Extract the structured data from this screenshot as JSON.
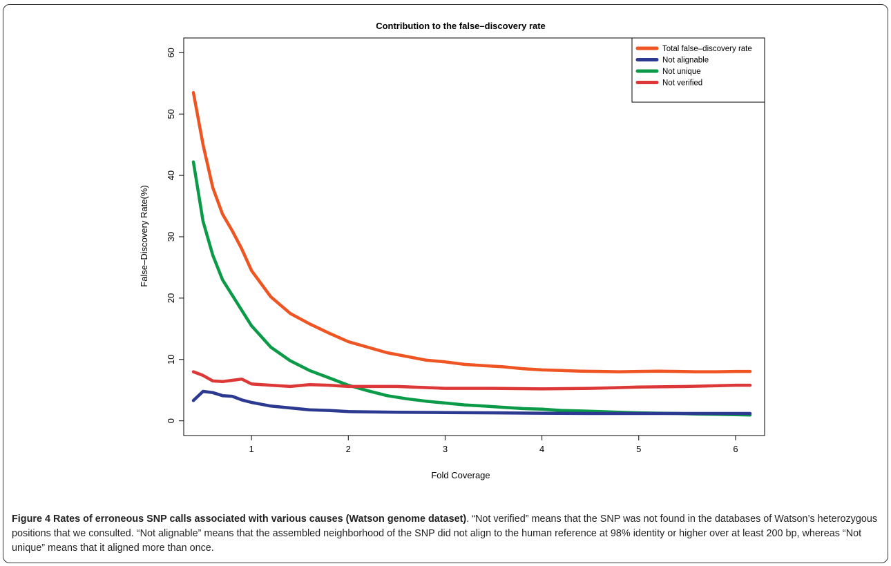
{
  "chart_data": {
    "type": "line",
    "title": "Contribution to the false–discovery rate",
    "xlabel": "Fold Coverage",
    "ylabel": "False–Discovery Rate(%)",
    "xlim": [
      0.3,
      6.3
    ],
    "ylim": [
      -2.4,
      62.4
    ],
    "xticks": [
      "1",
      "2",
      "3",
      "4",
      "5",
      "6"
    ],
    "xtick_values": [
      1,
      2,
      3,
      4,
      5,
      6
    ],
    "yticks": [
      "0",
      "10",
      "20",
      "30",
      "40",
      "50",
      "60"
    ],
    "ytick_values": [
      0,
      10,
      20,
      30,
      40,
      50,
      60
    ],
    "grid": false,
    "legend_position": "top-right",
    "series": [
      {
        "name": "Total false–discovery rate",
        "color": "#EE5522",
        "x": [
          0.4,
          0.5,
          0.6,
          0.7,
          0.8,
          0.9,
          1.0,
          1.2,
          1.4,
          1.6,
          1.8,
          2.0,
          2.2,
          2.4,
          2.6,
          2.8,
          3.0,
          3.2,
          3.4,
          3.6,
          3.8,
          4.0,
          4.2,
          4.4,
          4.6,
          4.8,
          5.0,
          5.2,
          5.4,
          5.6,
          5.8,
          6.0,
          6.15
        ],
        "y": [
          53.5,
          45.0,
          38.0,
          33.7,
          31.0,
          28.0,
          24.5,
          20.2,
          17.5,
          15.8,
          14.3,
          12.9,
          12.0,
          11.1,
          10.5,
          9.9,
          9.6,
          9.2,
          9.0,
          8.8,
          8.5,
          8.3,
          8.2,
          8.1,
          8.05,
          8.0,
          8.05,
          8.1,
          8.05,
          8.0,
          8.0,
          8.05,
          8.05
        ]
      },
      {
        "name": "Not alignable",
        "color": "#2B3990",
        "x": [
          0.4,
          0.5,
          0.6,
          0.7,
          0.8,
          0.9,
          1.0,
          1.2,
          1.4,
          1.6,
          1.8,
          2.0,
          2.5,
          3.0,
          3.5,
          4.0,
          4.5,
          5.0,
          5.5,
          6.0,
          6.15
        ],
        "y": [
          3.3,
          4.8,
          4.6,
          4.1,
          4.0,
          3.4,
          3.0,
          2.4,
          2.1,
          1.8,
          1.7,
          1.5,
          1.4,
          1.35,
          1.3,
          1.25,
          1.2,
          1.2,
          1.2,
          1.2,
          1.2
        ]
      },
      {
        "name": "Not unique",
        "color": "#0A9A48",
        "x": [
          0.4,
          0.5,
          0.6,
          0.7,
          0.8,
          0.9,
          1.0,
          1.2,
          1.4,
          1.6,
          1.8,
          2.0,
          2.2,
          2.4,
          2.6,
          2.8,
          3.0,
          3.2,
          3.4,
          3.6,
          3.8,
          4.0,
          4.2,
          4.4,
          4.6,
          4.8,
          5.0,
          5.2,
          5.4,
          5.6,
          5.8,
          6.0,
          6.15
        ],
        "y": [
          42.2,
          32.5,
          27.0,
          23.0,
          20.5,
          18.0,
          15.5,
          12.0,
          9.8,
          8.2,
          7.0,
          5.8,
          4.9,
          4.1,
          3.6,
          3.2,
          2.9,
          2.6,
          2.4,
          2.2,
          2.0,
          1.9,
          1.7,
          1.6,
          1.5,
          1.4,
          1.3,
          1.25,
          1.2,
          1.1,
          1.05,
          1.0,
          0.95
        ]
      },
      {
        "name": "Not verified",
        "color": "#DD3838",
        "x": [
          0.4,
          0.5,
          0.6,
          0.7,
          0.8,
          0.9,
          1.0,
          1.2,
          1.4,
          1.6,
          1.8,
          2.0,
          2.5,
          3.0,
          3.5,
          4.0,
          4.5,
          5.0,
          5.5,
          6.0,
          6.15
        ],
        "y": [
          8.0,
          7.4,
          6.5,
          6.4,
          6.6,
          6.8,
          6.0,
          5.8,
          5.6,
          5.9,
          5.8,
          5.6,
          5.6,
          5.3,
          5.3,
          5.2,
          5.3,
          5.5,
          5.6,
          5.8,
          5.8
        ]
      }
    ]
  },
  "caption": {
    "bold": "Figure 4 Rates of erroneous SNP calls associated with various causes (Watson genome dataset)",
    "text": ". “Not verified” means that the SNP was not found in the databases of Watson’s heterozygous positions that we consulted. “Not alignable” means that the assembled neighborhood of the SNP did not align to the human reference at 98% identity or higher over at least 200 bp, whereas “Not unique” means that it aligned more than once."
  }
}
